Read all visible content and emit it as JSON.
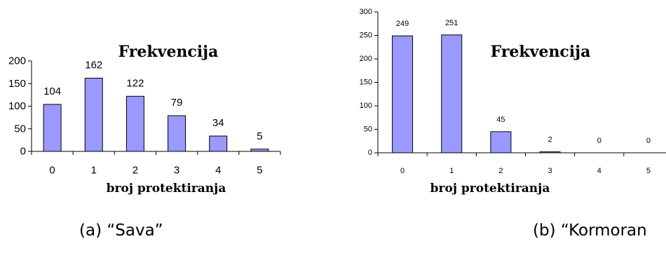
{
  "chart_data": [
    {
      "type": "bar",
      "title": "Frekvencija",
      "xlabel": "broj protektiranja",
      "ylabel": "",
      "categories": [
        "0",
        "1",
        "2",
        "3",
        "4",
        "5"
      ],
      "values": [
        104,
        162,
        122,
        79,
        34,
        5
      ],
      "data_labels": [
        "104",
        "162",
        "122",
        "79",
        "34",
        "5"
      ],
      "yticks": [
        0,
        50,
        100,
        150,
        200
      ],
      "ylim": [
        0,
        200
      ],
      "grid": false,
      "bar_color": "#9999ff",
      "caption": "(a) “Sava”"
    },
    {
      "type": "bar",
      "title": "Frekvencija",
      "xlabel": "broj protektiranja",
      "ylabel": "",
      "categories": [
        "0",
        "1",
        "2",
        "3",
        "4",
        "5"
      ],
      "values": [
        249,
        251,
        45,
        2,
        0,
        0
      ],
      "data_labels": [
        "249",
        "251",
        "45",
        "2",
        "0",
        "0"
      ],
      "yticks": [
        0,
        50,
        100,
        150,
        200,
        250,
        300
      ],
      "ylim": [
        0,
        300
      ],
      "grid": false,
      "bar_color": "#9999ff",
      "caption": "(b) “Kormoran"
    }
  ]
}
